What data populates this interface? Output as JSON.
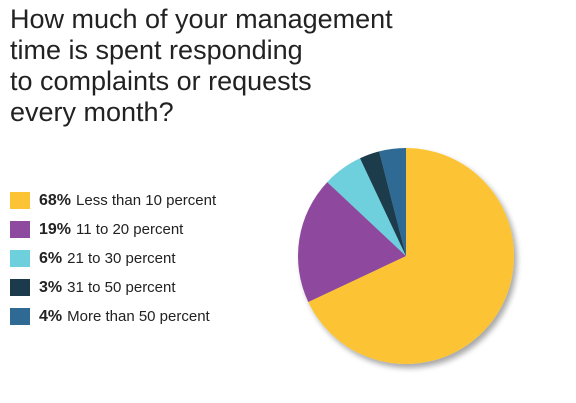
{
  "title_lines": [
    "How much of your management",
    "time is spent responding",
    "to complaints or requests",
    "every month?"
  ],
  "chart_data": {
    "type": "pie",
    "title": "How much of your management time is spent responding to complaints or requests every month?",
    "legend_position": "left",
    "slices": [
      {
        "percent_label": "68%",
        "label": "Less than 10 percent",
        "value": 68,
        "color": "#fcc434"
      },
      {
        "percent_label": "19%",
        "label": "11 to 20 percent",
        "value": 19,
        "color": "#8e4a9e"
      },
      {
        "percent_label": "6%",
        "label": "21 to 30 percent",
        "value": 6,
        "color": "#6ecfdd"
      },
      {
        "percent_label": "3%",
        "label": "31 to 50 percent",
        "value": 3,
        "color": "#1b3a4b"
      },
      {
        "percent_label": "4%",
        "label": "More than 50 percent",
        "value": 4,
        "color": "#2f6a94"
      }
    ]
  }
}
